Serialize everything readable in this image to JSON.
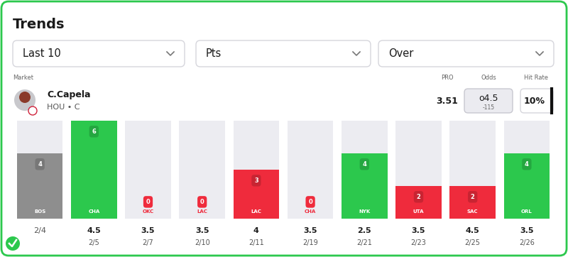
{
  "header": {
    "title": "Trends"
  },
  "filters": [
    "Last 10",
    "Pts",
    "Over"
  ],
  "market": {
    "label": "Market",
    "player": "C.Capela",
    "team": "HOU • C"
  },
  "columns": {
    "pro": {
      "label": "PRO",
      "value": 3.51
    },
    "odds": {
      "label": "Odds",
      "line": "o4.5",
      "price": "-115"
    },
    "hit_rate": {
      "label": "Hit Rate",
      "value": "10%"
    }
  },
  "chart_data": {
    "type": "bar",
    "categories": [
      "BOS",
      "CHA",
      "OKC",
      "LAC",
      "LAC",
      "CHA",
      "NYK",
      "UTA",
      "SAC",
      "ORL"
    ],
    "values": [
      4,
      6,
      0,
      0,
      3,
      0,
      4,
      2,
      2,
      4
    ],
    "colors": [
      "#8e8e8e",
      "#2cc84d",
      "#ef2b3c",
      "#ef2b3c",
      "#ef2b3c",
      "#ef2b3c",
      "#2cc84d",
      "#ef2b3c",
      "#ef2b3c",
      "#2cc84d"
    ],
    "lines": [
      null,
      4.5,
      3.5,
      3.5,
      4,
      3.5,
      2.5,
      3.5,
      4.5,
      3.5
    ],
    "dates": [
      "2/4",
      "2/5",
      "2/7",
      "2/10",
      "2/11",
      "2/19",
      "2/21",
      "2/23",
      "2/25",
      "2/26"
    ],
    "ylim": [
      0,
      6
    ],
    "tick_labels": false,
    "data_labels": true
  }
}
